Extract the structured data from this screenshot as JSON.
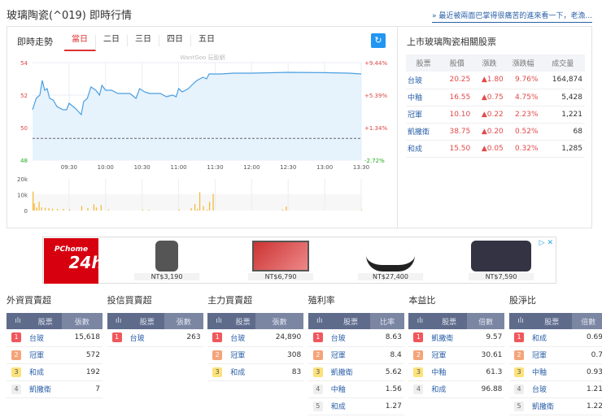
{
  "page": {
    "title": "玻璃陶瓷(^019) 即時行情",
    "top_link": "» 最近被兩面巴掌得很痛苦的進來看一下，老漁..."
  },
  "intraday": {
    "title": "即時走勢",
    "tabs": [
      "當日",
      "二日",
      "三日",
      "四日",
      "五日"
    ],
    "active_tab": "當日",
    "refresh_icon": "refresh-icon",
    "watermark": "WantGoo 玩股網"
  },
  "chart_data": {
    "type": "line",
    "x_ticks": [
      "09:30",
      "10:00",
      "10:30",
      "11:00",
      "11:30",
      "12:00",
      "12:30",
      "13:00",
      "13:30"
    ],
    "y_ticks": [
      "54",
      "52",
      "50",
      "48"
    ],
    "y_ticks_right": [
      "+9.44%",
      "+5.39%",
      "+1.34%",
      "-2.72%"
    ],
    "ylim": [
      48,
      54
    ],
    "reference_price": 49.34,
    "price": {
      "x": [
        "09:00",
        "09:03",
        "09:06",
        "09:08",
        "09:10",
        "09:12",
        "09:14",
        "09:17",
        "09:20",
        "09:25",
        "09:28",
        "09:30",
        "09:35",
        "09:40",
        "09:42",
        "09:45",
        "09:48",
        "09:52",
        "09:55",
        "09:57",
        "10:00",
        "10:05",
        "10:10",
        "10:20",
        "10:25",
        "10:28",
        "10:32",
        "10:36",
        "10:45",
        "10:50",
        "10:55",
        "10:58",
        "11:00",
        "11:03",
        "11:08",
        "11:12",
        "11:15",
        "11:20",
        "11:23",
        "11:25",
        "11:35",
        "11:45",
        "12:00",
        "12:30",
        "13:00",
        "13:20",
        "13:30"
      ],
      "y": [
        51.1,
        51.8,
        52.0,
        52.9,
        52.3,
        52.4,
        51.8,
        51.7,
        51.3,
        51.1,
        51.1,
        51.5,
        51.2,
        50.8,
        51.6,
        51.8,
        52.5,
        52.3,
        52.0,
        52.6,
        52.3,
        52.3,
        52.1,
        52.1,
        51.8,
        52.4,
        52.2,
        52.1,
        52.1,
        51.9,
        52.0,
        51.9,
        52.4,
        52.2,
        52.4,
        52.7,
        52.9,
        53.1,
        53.0,
        53.3,
        53.3,
        53.35,
        53.35,
        53.4,
        53.38,
        53.35,
        53.3
      ]
    },
    "volume": {
      "y_ticks": [
        "20k",
        "10k",
        "0"
      ],
      "ylim": [
        0,
        20
      ],
      "x": [
        "09:00",
        "09:01",
        "09:03",
        "09:05",
        "09:07",
        "09:10",
        "09:13",
        "09:16",
        "09:20",
        "09:25",
        "09:30",
        "09:40",
        "09:45",
        "09:50",
        "09:52",
        "09:56",
        "10:02",
        "10:30",
        "10:35",
        "11:00",
        "11:10",
        "11:13",
        "11:15",
        "11:17",
        "11:20",
        "11:23",
        "11:25",
        "11:28",
        "12:25",
        "12:28",
        "13:30"
      ],
      "y": [
        12,
        4.5,
        2,
        5.5,
        2,
        1.8,
        1.5,
        1.2,
        1,
        1,
        0.8,
        2.8,
        1.5,
        4,
        2,
        3.5,
        0.6,
        0.5,
        0.5,
        0.8,
        1.5,
        4.2,
        1,
        11.5,
        2.8,
        0.6,
        5.5,
        10.5,
        0.6,
        2.5,
        0.5
      ]
    }
  },
  "related": {
    "title": "上市玻璃陶瓷相關股票",
    "headers": [
      "股票",
      "股價",
      "漲跌",
      "漲跌幅",
      "成交量"
    ],
    "rows": [
      [
        "台玻",
        "20.25",
        "▲1.80",
        "9.76%",
        "164,874"
      ],
      [
        "中釉",
        "16.55",
        "▲0.75",
        "4.75%",
        "5,428"
      ],
      [
        "冠軍",
        "10.10",
        "▲0.22",
        "2.23%",
        "1,221"
      ],
      [
        "凱撒衛",
        "38.75",
        "▲0.20",
        "0.52%",
        "68"
      ],
      [
        "和成",
        "15.50",
        "▲0.05",
        "0.32%",
        "1,285"
      ]
    ]
  },
  "ad": {
    "brand": "PChome",
    "brand2": "24h",
    "prices": [
      "NT$3,190",
      "NT$6,790",
      "NT$27,400",
      "NT$7,590"
    ]
  },
  "rankings": [
    {
      "title": "外資買賣超",
      "headers": [
        "ılı",
        "股票",
        "張數"
      ],
      "rows": [
        [
          "1",
          "台玻",
          "15,618"
        ],
        [
          "2",
          "冠軍",
          "572"
        ],
        [
          "3",
          "和成",
          "192"
        ],
        [
          "4",
          "凱撒衛",
          "7"
        ]
      ]
    },
    {
      "title": "投信買賣超",
      "headers": [
        "ılı",
        "股票",
        "張數"
      ],
      "rows": [
        [
          "1",
          "台玻",
          "263"
        ]
      ]
    },
    {
      "title": "主力買賣超",
      "headers": [
        "ılı",
        "股票",
        "張數"
      ],
      "rows": [
        [
          "1",
          "台玻",
          "24,890"
        ],
        [
          "2",
          "冠軍",
          "308"
        ],
        [
          "3",
          "和成",
          "83"
        ]
      ]
    },
    {
      "title": "殖利率",
      "headers": [
        "ılı",
        "股票",
        "比率"
      ],
      "rows": [
        [
          "1",
          "台玻",
          "8.63"
        ],
        [
          "2",
          "冠軍",
          "8.4"
        ],
        [
          "3",
          "凱撒衛",
          "5.62"
        ],
        [
          "4",
          "中釉",
          "1.56"
        ],
        [
          "5",
          "和成",
          "1.27"
        ]
      ]
    },
    {
      "title": "本益比",
      "headers": [
        "ılı",
        "股票",
        "倍數"
      ],
      "rows": [
        [
          "1",
          "凱撒衛",
          "9.57"
        ],
        [
          "2",
          "冠軍",
          "30.61"
        ],
        [
          "3",
          "中釉",
          "61.3"
        ],
        [
          "4",
          "和成",
          "96.88"
        ]
      ]
    },
    {
      "title": "股淨比",
      "headers": [
        "ılı",
        "股票",
        "倍數"
      ],
      "rows": [
        [
          "1",
          "和成",
          "0.69"
        ],
        [
          "2",
          "冠軍",
          "0.7"
        ],
        [
          "3",
          "中釉",
          "0.93"
        ],
        [
          "4",
          "台玻",
          "1.21"
        ],
        [
          "5",
          "凱撒衛",
          "1.22"
        ]
      ]
    }
  ]
}
